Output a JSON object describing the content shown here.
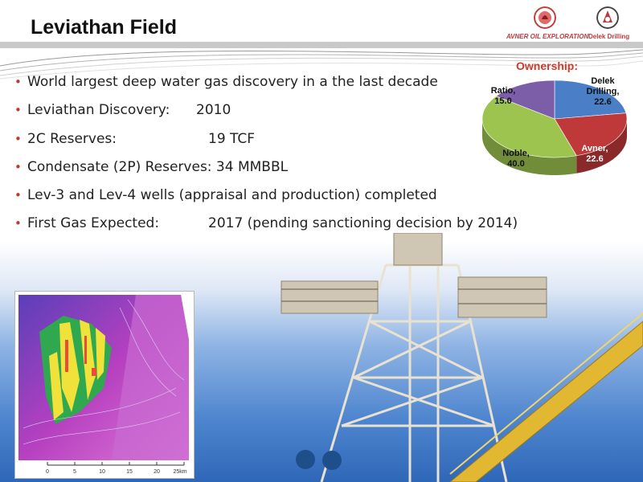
{
  "slide": {
    "title": "Leviathan Field",
    "logos": {
      "avner_text": "AVNER OIL EXPLORATION",
      "delek_text": "Delek Drilling"
    },
    "bullets": [
      {
        "label": "World largest deep water gas discovery in a the last decade",
        "value": ""
      },
      {
        "label": "Leviathan Discovery:",
        "value": "2010"
      },
      {
        "label": "2C Reserves:",
        "value": "19 TCF"
      },
      {
        "label": "Condensate (2P) Reserves: 34 MMBBL",
        "value": ""
      },
      {
        "label": "Lev-3 and  Lev-4  wells (appraisal and production) completed",
        "value": ""
      },
      {
        "label": "First Gas Expected:",
        "value": "2017 (pending sanctioning decision by 2014)"
      }
    ],
    "map_scale": [
      "0",
      "5",
      "10",
      "15",
      "20",
      "25km"
    ]
  },
  "colors": {
    "accent_red": "#d0392c",
    "bullet_red": "#c0392b",
    "delek_blue": "#4a7fc8",
    "avner_red": "#c0393a",
    "noble_green": "#9dc44f",
    "ratio_purple": "#7b5ea7"
  },
  "chart_data": {
    "type": "pie",
    "title": "Ownership:",
    "slices": [
      {
        "name": "Delek Drilling",
        "value": 22.6,
        "label_lines": [
          "Delek",
          "Drilling,",
          "22.6"
        ],
        "color": "#4a7fc8"
      },
      {
        "name": "Avner",
        "value": 22.6,
        "label_lines": [
          "Avner,",
          "22.6"
        ],
        "color": "#c0393a"
      },
      {
        "name": "Noble",
        "value": 40.0,
        "label_lines": [
          "Noble,",
          "40.0"
        ],
        "color": "#9dc44f"
      },
      {
        "name": "Ratio",
        "value": 15.0,
        "label_lines": [
          "Ratio,",
          "15.0"
        ],
        "color": "#7b5ea7"
      }
    ],
    "three_d": true,
    "legend": "none"
  }
}
